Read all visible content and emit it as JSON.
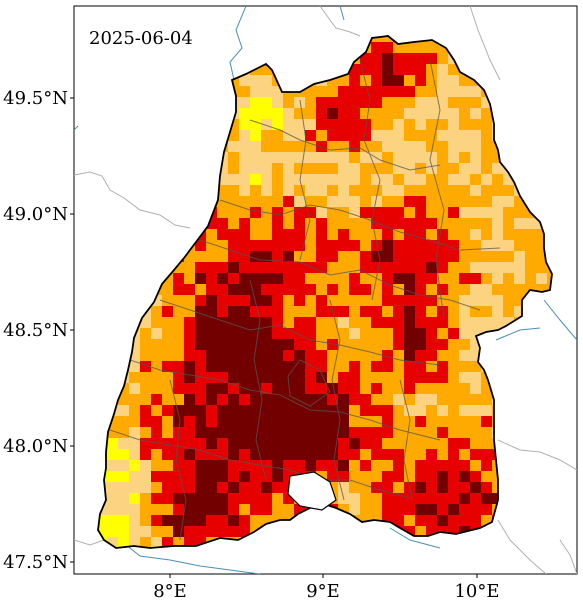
{
  "date_label": "2025-06-04",
  "lat_ticks": [
    "49.5°N",
    "49.0°N",
    "48.5°N",
    "48.0°N",
    "47.5°N"
  ],
  "lon_ticks": [
    "8°E",
    "9°E",
    "10°E"
  ],
  "colors": {
    "class_1": "#ffff00",
    "class_2": "#fcd381",
    "class_3": "#ffaa00",
    "class_4": "#e60000",
    "class_5": "#730000",
    "border": "#000000",
    "district_lines": "#555555",
    "neighbor_lines": "#b0b0b0",
    "rivers": "#4a8fb8"
  }
}
